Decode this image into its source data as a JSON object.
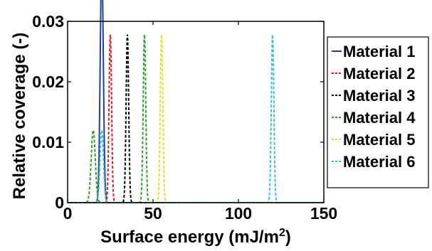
{
  "chart_data": {
    "type": "line",
    "xlabel": "Surface energy (mJ/m",
    "xlabel_sup": "2",
    "xlabel_close": ")",
    "ylabel": "Relative coverage (-)",
    "xlim": [
      0,
      150
    ],
    "ylim": [
      0,
      0.03
    ],
    "x_ticks": [
      0,
      50,
      100,
      150
    ],
    "x_tick_labels": [
      "0",
      "50",
      "100",
      "150"
    ],
    "y_ticks": [
      0,
      0.01,
      0.02,
      0.03
    ],
    "y_tick_labels": [
      "0",
      "0.01",
      "0.02",
      "0.03"
    ],
    "grid": false,
    "legend_position": "right",
    "series": [
      {
        "name": "Material 1",
        "color": "#1f3fa0",
        "dash": "solid",
        "peaks": [
          {
            "center": 20,
            "height": 0.0278,
            "sigma": 0.9
          },
          {
            "center": 20,
            "height": 0.012,
            "sigma": 0.9
          }
        ]
      },
      {
        "name": "Material 2",
        "color": "#e8141e",
        "dash": "dashed",
        "peaks": [
          {
            "center": 25,
            "height": 0.0278,
            "sigma": 0.75
          }
        ]
      },
      {
        "name": "Material 3",
        "color": "#000000",
        "dash": "dashed",
        "peaks": [
          {
            "center": 35,
            "height": 0.0278,
            "sigma": 0.75
          }
        ]
      },
      {
        "name": "Material 4",
        "color": "#2aa32a",
        "dash": "dashed",
        "peaks": [
          {
            "center": 15,
            "height": 0.012,
            "sigma": 1.2
          },
          {
            "center": 45,
            "height": 0.0278,
            "sigma": 0.75
          }
        ]
      },
      {
        "name": "Material 5",
        "color": "#e3e31b",
        "dash": "dashed",
        "peaks": [
          {
            "center": 55,
            "height": 0.0278,
            "sigma": 0.75
          }
        ]
      },
      {
        "name": "Material 6",
        "color": "#35c1d4",
        "dash": "dashed",
        "peaks": [
          {
            "center": 20,
            "height": 0.012,
            "sigma": 1.0
          },
          {
            "center": 120,
            "height": 0.0278,
            "sigma": 0.75
          }
        ]
      }
    ]
  }
}
